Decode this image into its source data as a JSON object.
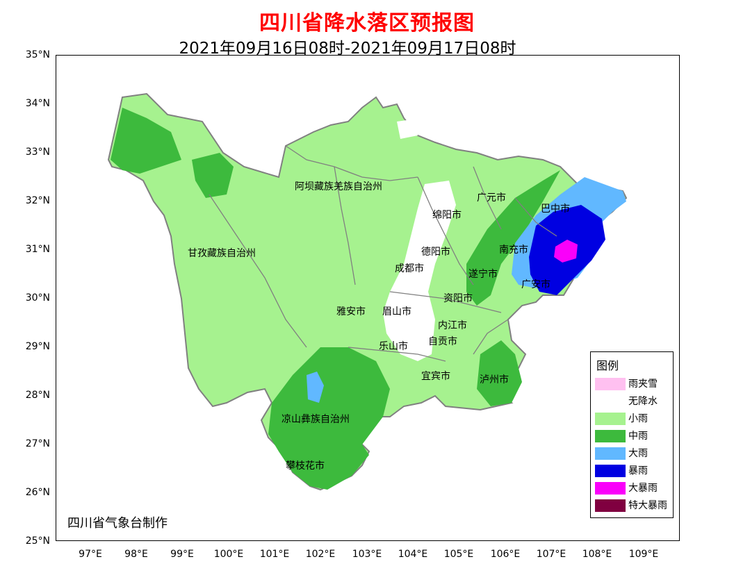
{
  "title": "四川省降水落区预报图",
  "subtitle": "2021年09月16日08时-2021年09月17日08时",
  "agency": "四川省气象台制作",
  "axes": {
    "lat_labels": [
      "35°N",
      "34°N",
      "33°N",
      "32°N",
      "31°N",
      "30°N",
      "29°N",
      "28°N",
      "27°N",
      "26°N",
      "25°N"
    ],
    "lon_labels": [
      "97°E",
      "98°E",
      "99°E",
      "100°E",
      "101°E",
      "102°E",
      "103°E",
      "104°E",
      "105°E",
      "106°E",
      "107°E",
      "108°E",
      "109°E"
    ]
  },
  "cities": [
    "阿坝藏族羌族自治州",
    "甘孜藏族自治州",
    "广元市",
    "巴中市",
    "绵阳市",
    "德阳市",
    "南充市",
    "成都市",
    "遂宁市",
    "广安市",
    "雅安市",
    "眉山市",
    "资阳市",
    "内江市",
    "自贡市",
    "乐山市",
    "宜宾市",
    "泸州市",
    "凉山彝族自治州",
    "攀枝花市"
  ],
  "legend": {
    "title": "图例",
    "items": [
      {
        "label": "雨夹雪",
        "color": "#ffc0f0"
      },
      {
        "label": "无降水",
        "color": "#ffffff"
      },
      {
        "label": "小雨",
        "color": "#a6f28f"
      },
      {
        "label": "中雨",
        "color": "#3dba3d"
      },
      {
        "label": "大雨",
        "color": "#61b8ff"
      },
      {
        "label": "暴雨",
        "color": "#0000e1"
      },
      {
        "label": "大暴雨",
        "color": "#fa00fa"
      },
      {
        "label": "特大暴雨",
        "color": "#800040"
      }
    ]
  },
  "colors": {
    "title": "#ff0000",
    "boundary": "#808080"
  }
}
